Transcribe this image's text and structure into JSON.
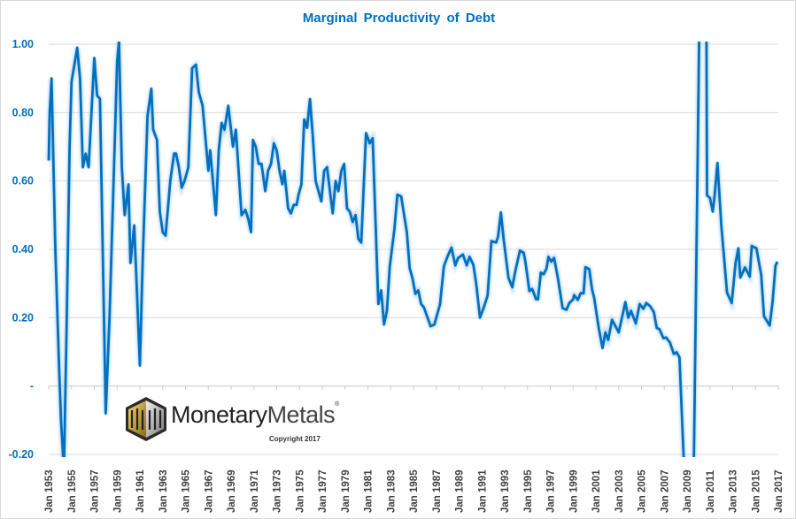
{
  "chart_data": {
    "type": "line",
    "title": "Marginal Productivity of Debt",
    "xlabel": "",
    "ylabel": "",
    "ylim": [
      -0.2,
      1.0
    ],
    "xlim": [
      "1953-01",
      "2017-01"
    ],
    "grid": true,
    "line_color": "#0070C0",
    "y_ticks": [
      {
        "value": 1.0,
        "label": "1.00"
      },
      {
        "value": 0.8,
        "label": "0.80"
      },
      {
        "value": 0.6,
        "label": "0.60"
      },
      {
        "value": 0.4,
        "label": "0.40"
      },
      {
        "value": 0.2,
        "label": "0.20"
      },
      {
        "value": 0.0,
        "label": "-"
      },
      {
        "value": -0.2,
        "label": "-0.20"
      }
    ],
    "x_ticks": [
      "Jan 1953",
      "Jan 1955",
      "Jan 1957",
      "Jan 1959",
      "Jan 1961",
      "Jan 1963",
      "Jan 1965",
      "Jan 1967",
      "Jan 1969",
      "Jan 1971",
      "Jan 1973",
      "Jan 1975",
      "Jan 1977",
      "Jan 1979",
      "Jan 1981",
      "Jan 1983",
      "Jan 1985",
      "Jan 1987",
      "Jan 1989",
      "Jan 1991",
      "Jan 1993",
      "Jan 1995",
      "Jan 1997",
      "Jan 1999",
      "Jan 2001",
      "Jan 2003",
      "Jan 2005",
      "Jan 2007",
      "Jan 2009",
      "Jan 2011",
      "Jan 2013",
      "Jan 2015",
      "Jan 2017"
    ],
    "points": [
      [
        "1953-01",
        0.66
      ],
      [
        "1953-02",
        0.8
      ],
      [
        "1953-04",
        0.9
      ],
      [
        "1953-08",
        0.4
      ],
      [
        "1953-12",
        0.05
      ],
      [
        "1954-02",
        -0.1
      ],
      [
        "1954-05",
        -0.25
      ],
      [
        "1954-08",
        0.2
      ],
      [
        "1954-11",
        0.7
      ],
      [
        "1955-01",
        0.89
      ],
      [
        "1955-07",
        0.99
      ],
      [
        "1955-10",
        0.9
      ],
      [
        "1956-01",
        0.64
      ],
      [
        "1956-04",
        0.68
      ],
      [
        "1956-07",
        0.64
      ],
      [
        "1957-01",
        0.96
      ],
      [
        "1957-04",
        0.85
      ],
      [
        "1957-07",
        0.84
      ],
      [
        "1958-01",
        -0.08
      ],
      [
        "1958-05",
        0.2
      ],
      [
        "1959-01",
        0.95
      ],
      [
        "1959-03",
        1.01
      ],
      [
        "1959-06",
        0.64
      ],
      [
        "1959-09",
        0.5
      ],
      [
        "1960-01",
        0.59
      ],
      [
        "1960-03",
        0.36
      ],
      [
        "1960-07",
        0.47
      ],
      [
        "1961-01",
        0.06
      ],
      [
        "1961-04",
        0.37
      ],
      [
        "1961-09",
        0.79
      ],
      [
        "1962-01",
        0.87
      ],
      [
        "1962-03",
        0.75
      ],
      [
        "1962-07",
        0.72
      ],
      [
        "1962-10",
        0.51
      ],
      [
        "1963-01",
        0.45
      ],
      [
        "1963-04",
        0.44
      ],
      [
        "1963-09",
        0.6
      ],
      [
        "1964-01",
        0.68
      ],
      [
        "1964-03",
        0.68
      ],
      [
        "1964-06",
        0.64
      ],
      [
        "1964-09",
        0.58
      ],
      [
        "1964-12",
        0.6
      ],
      [
        "1965-04",
        0.64
      ],
      [
        "1965-08",
        0.93
      ],
      [
        "1965-12",
        0.94
      ],
      [
        "1966-03",
        0.86
      ],
      [
        "1966-07",
        0.82
      ],
      [
        "1967-01",
        0.63
      ],
      [
        "1967-03",
        0.69
      ],
      [
        "1967-09",
        0.5
      ],
      [
        "1967-12",
        0.69
      ],
      [
        "1968-03",
        0.77
      ],
      [
        "1968-06",
        0.75
      ],
      [
        "1968-10",
        0.82
      ],
      [
        "1969-03",
        0.7
      ],
      [
        "1969-06",
        0.75
      ],
      [
        "1969-12",
        0.5
      ],
      [
        "1970-04",
        0.515
      ],
      [
        "1970-07",
        0.49
      ],
      [
        "1970-10",
        0.45
      ],
      [
        "1970-12",
        0.72
      ],
      [
        "1971-03",
        0.7
      ],
      [
        "1971-06",
        0.65
      ],
      [
        "1971-09",
        0.65
      ],
      [
        "1972-01",
        0.57
      ],
      [
        "1972-04",
        0.63
      ],
      [
        "1972-07",
        0.65
      ],
      [
        "1972-10",
        0.71
      ],
      [
        "1973-01",
        0.69
      ],
      [
        "1973-04",
        0.63
      ],
      [
        "1973-07",
        0.59
      ],
      [
        "1973-09",
        0.63
      ],
      [
        "1974-01",
        0.52
      ],
      [
        "1974-04",
        0.505
      ],
      [
        "1974-07",
        0.53
      ],
      [
        "1974-10",
        0.53
      ],
      [
        "1974-12",
        0.56
      ],
      [
        "1975-03",
        0.59
      ],
      [
        "1975-06",
        0.78
      ],
      [
        "1975-09",
        0.755
      ],
      [
        "1975-12",
        0.84
      ],
      [
        "1976-03",
        0.73
      ],
      [
        "1976-06",
        0.6
      ],
      [
        "1976-09",
        0.57
      ],
      [
        "1976-12",
        0.54
      ],
      [
        "1977-03",
        0.63
      ],
      [
        "1977-06",
        0.64
      ],
      [
        "1977-09",
        0.57
      ],
      [
        "1977-12",
        0.505
      ],
      [
        "1978-03",
        0.6
      ],
      [
        "1978-06",
        0.57
      ],
      [
        "1978-09",
        0.63
      ],
      [
        "1978-12",
        0.65
      ],
      [
        "1979-03",
        0.52
      ],
      [
        "1979-06",
        0.51
      ],
      [
        "1979-09",
        0.48
      ],
      [
        "1979-12",
        0.5
      ],
      [
        "1980-03",
        0.43
      ],
      [
        "1980-06",
        0.42
      ],
      [
        "1980-11",
        0.74
      ],
      [
        "1981-03",
        0.71
      ],
      [
        "1981-06",
        0.725
      ],
      [
        "1981-12",
        0.24
      ],
      [
        "1982-03",
        0.28
      ],
      [
        "1982-06",
        0.18
      ],
      [
        "1982-09",
        0.22
      ],
      [
        "1982-12",
        0.35
      ],
      [
        "1983-05",
        0.46
      ],
      [
        "1983-08",
        0.56
      ],
      [
        "1983-12",
        0.555
      ],
      [
        "1984-06",
        0.45
      ],
      [
        "1984-09",
        0.345
      ],
      [
        "1984-12",
        0.315
      ],
      [
        "1985-03",
        0.27
      ],
      [
        "1985-06",
        0.28
      ],
      [
        "1985-09",
        0.24
      ],
      [
        "1985-12",
        0.23
      ],
      [
        "1986-07",
        0.175
      ],
      [
        "1986-11",
        0.18
      ],
      [
        "1987-05",
        0.24
      ],
      [
        "1987-09",
        0.35
      ],
      [
        "1988-01",
        0.38
      ],
      [
        "1988-05",
        0.405
      ],
      [
        "1988-09",
        0.353
      ],
      [
        "1988-12",
        0.375
      ],
      [
        "1989-05",
        0.385
      ],
      [
        "1989-09",
        0.353
      ],
      [
        "1989-12",
        0.378
      ],
      [
        "1990-04",
        0.355
      ],
      [
        "1990-07",
        0.3
      ],
      [
        "1990-11",
        0.2
      ],
      [
        "1991-03",
        0.23
      ],
      [
        "1991-07",
        0.265
      ],
      [
        "1991-11",
        0.424
      ],
      [
        "1992-04",
        0.42
      ],
      [
        "1992-06",
        0.437
      ],
      [
        "1992-09",
        0.508
      ],
      [
        "1992-12",
        0.428
      ],
      [
        "1993-05",
        0.316
      ],
      [
        "1993-09",
        0.289
      ],
      [
        "1993-12",
        0.334
      ],
      [
        "1994-05",
        0.396
      ],
      [
        "1994-09",
        0.39
      ],
      [
        "1994-11",
        0.36
      ],
      [
        "1995-03",
        0.278
      ],
      [
        "1995-06",
        0.284
      ],
      [
        "1995-10",
        0.254
      ],
      [
        "1995-12",
        0.254
      ],
      [
        "1996-03",
        0.332
      ],
      [
        "1996-06",
        0.327
      ],
      [
        "1996-09",
        0.344
      ],
      [
        "1996-11",
        0.378
      ],
      [
        "1997-02",
        0.364
      ],
      [
        "1997-05",
        0.375
      ],
      [
        "1997-09",
        0.316
      ],
      [
        "1998-02",
        0.228
      ],
      [
        "1998-06",
        0.223
      ],
      [
        "1998-09",
        0.243
      ],
      [
        "1999-01",
        0.254
      ],
      [
        "1999-02",
        0.266
      ],
      [
        "1999-06",
        0.252
      ],
      [
        "1999-09",
        0.272
      ],
      [
        "1999-12",
        0.271
      ],
      [
        "2000-02",
        0.348
      ],
      [
        "2000-06",
        0.342
      ],
      [
        "2000-09",
        0.282
      ],
      [
        "2000-11",
        0.26
      ],
      [
        "2001-04",
        0.17
      ],
      [
        "2001-08",
        0.111
      ],
      [
        "2001-11",
        0.157
      ],
      [
        "2002-02",
        0.135
      ],
      [
        "2002-06",
        0.194
      ],
      [
        "2002-09",
        0.178
      ],
      [
        "2003-01",
        0.157
      ],
      [
        "2003-08",
        0.246
      ],
      [
        "2003-11",
        0.2
      ],
      [
        "2004-02",
        0.22
      ],
      [
        "2004-07",
        0.183
      ],
      [
        "2004-11",
        0.24
      ],
      [
        "2005-03",
        0.226
      ],
      [
        "2005-06",
        0.243
      ],
      [
        "2005-10",
        0.234
      ],
      [
        "2006-02",
        0.217
      ],
      [
        "2006-05",
        0.17
      ],
      [
        "2006-08",
        0.166
      ],
      [
        "2006-12",
        0.14
      ],
      [
        "2007-03",
        0.142
      ],
      [
        "2007-07",
        0.127
      ],
      [
        "2007-11",
        0.094
      ],
      [
        "2008-02",
        0.099
      ],
      [
        "2008-05",
        0.084
      ],
      [
        "2008-10",
        -0.25
      ],
      [
        "2009-01",
        -0.45
      ],
      [
        "2009-08",
        -0.25
      ],
      [
        "2010-03",
        1.3
      ],
      [
        "2010-09",
        1.3
      ],
      [
        "2010-10",
        0.558
      ],
      [
        "2011-01",
        0.55
      ],
      [
        "2011-04",
        0.51
      ],
      [
        "2011-06",
        0.558
      ],
      [
        "2011-09",
        0.653
      ],
      [
        "2012-01",
        0.472
      ],
      [
        "2012-07",
        0.273
      ],
      [
        "2012-12",
        0.243
      ],
      [
        "2013-04",
        0.36
      ],
      [
        "2013-07",
        0.403
      ],
      [
        "2013-09",
        0.317
      ],
      [
        "2014-02",
        0.347
      ],
      [
        "2014-07",
        0.32
      ],
      [
        "2014-09",
        0.41
      ],
      [
        "2015-02",
        0.403
      ],
      [
        "2015-07",
        0.325
      ],
      [
        "2015-10",
        0.204
      ],
      [
        "2016-04",
        0.177
      ],
      [
        "2016-07",
        0.248
      ],
      [
        "2016-10",
        0.351
      ],
      [
        "2016-12",
        0.364
      ]
    ]
  },
  "logo": {
    "brand": "MonetaryMetals",
    "brand_part1": "Monetary",
    "brand_part2": "Metals",
    "registered": "®",
    "copyright": "Copyright 2017"
  }
}
